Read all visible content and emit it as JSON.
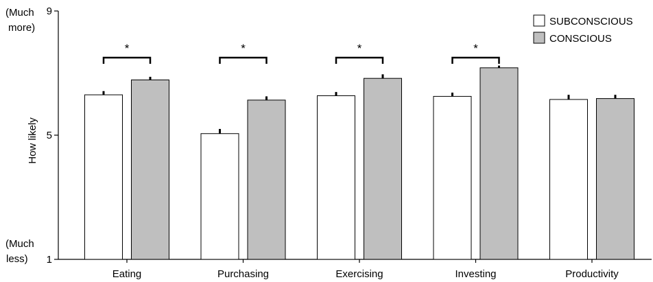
{
  "chart_data": {
    "type": "bar",
    "categories": [
      "Eating",
      "Purchasing",
      "Exercising",
      "Investing",
      "Productivity"
    ],
    "series": [
      {
        "name": "SUBCONSCIOUS",
        "values": [
          6.3,
          5.05,
          6.27,
          6.25,
          6.15
        ],
        "errors": [
          0.12,
          0.15,
          0.12,
          0.12,
          0.15
        ],
        "color": "#ffffff"
      },
      {
        "name": "CONSCIOUS",
        "values": [
          6.78,
          6.13,
          6.83,
          7.17,
          6.18
        ],
        "errors": [
          0.1,
          0.12,
          0.13,
          0.07,
          0.12
        ],
        "color": "#bfbfbf"
      }
    ],
    "ylabel": "How likely",
    "ylim": [
      1,
      9
    ],
    "yticks": [
      {
        "value": 1,
        "label": "1"
      },
      {
        "value": 5,
        "label": "5"
      },
      {
        "value": 9,
        "label": "9"
      }
    ],
    "y_extreme_labels": {
      "top": [
        "(Much",
        "more)"
      ],
      "bottom": [
        "(Much",
        "less)"
      ]
    },
    "significance": [
      {
        "category": "Eating",
        "label": "*"
      },
      {
        "category": "Purchasing",
        "label": "*"
      },
      {
        "category": "Exercising",
        "label": "*"
      },
      {
        "category": "Investing",
        "label": "*"
      }
    ],
    "legend_position": "top-right",
    "grid": false
  }
}
